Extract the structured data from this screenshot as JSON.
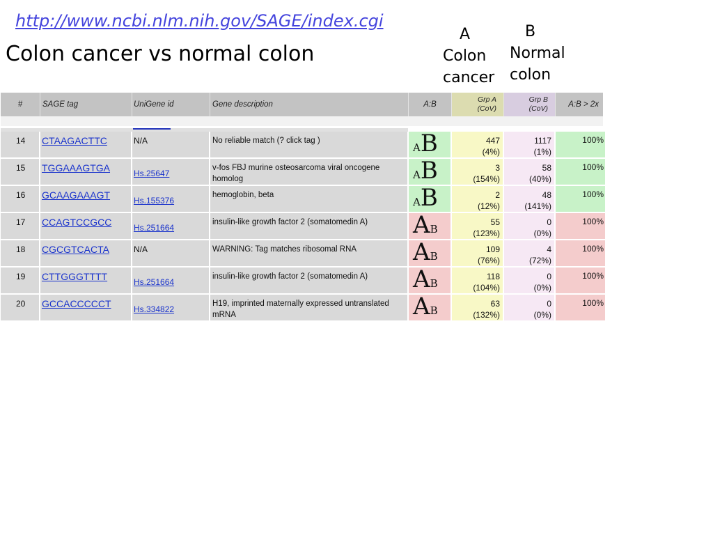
{
  "url": "http://www.ncbi.nlm.nih.gov/SAGE/index.cgi",
  "title": "Colon cancer vs normal colon",
  "groups": {
    "a": {
      "letter": "A",
      "line1": "Colon",
      "line2": "cancer"
    },
    "b": {
      "letter": "B",
      "line1": "Normal",
      "line2": "colon"
    }
  },
  "table": {
    "headers": {
      "num": "#",
      "tag": "SAGE tag",
      "unigene": "UniGene id",
      "desc": "Gene description",
      "ab": "A:B",
      "grpa_line1": "Grp A",
      "grpa_line2": "(CoV)",
      "grpb_line1": "Grp B",
      "grpb_line2": "(CoV)",
      "ratio": "A:B > 2x"
    },
    "rows": [
      {
        "num": "14",
        "tag": "CTAAGACTTC",
        "unigene": "N/A",
        "desc": "No reliable match (? click tag )",
        "a_letter": "A",
        "b_letter": "B",
        "grpa": "447",
        "grpa_cov": "(4%)",
        "grpb": "1117",
        "grpb_cov": "(1%)",
        "pct": "100%"
      },
      {
        "num": "15",
        "tag": "TGGAAAGTGA",
        "unigene": "Hs.25647",
        "desc": "v-fos FBJ murine osteosarcoma viral oncogene homolog",
        "a_letter": "A",
        "b_letter": "B",
        "grpa": "3",
        "grpa_cov": "(154%)",
        "grpb": "58",
        "grpb_cov": "(40%)",
        "pct": "100%"
      },
      {
        "num": "16",
        "tag": "GCAAGAAAGT",
        "unigene": "Hs.155376",
        "desc": "hemoglobin, beta",
        "a_letter": "A",
        "b_letter": "B",
        "grpa": "2",
        "grpa_cov": "(12%)",
        "grpb": "48",
        "grpb_cov": "(141%)",
        "pct": "100%"
      },
      {
        "num": "17",
        "tag": "CCAGTCCGCC",
        "unigene": "Hs.251664",
        "desc": "insulin-like growth factor 2 (somatomedin A)",
        "a_letter": "A",
        "b_letter": "B",
        "grpa": "55",
        "grpa_cov": "(123%)",
        "grpb": "0",
        "grpb_cov": "(0%)",
        "pct": "100%"
      },
      {
        "num": "18",
        "tag": "CGCGTCACTA",
        "unigene": "N/A",
        "desc": "WARNING: Tag matches ribosomal RNA",
        "a_letter": "A",
        "b_letter": "B",
        "grpa": "109",
        "grpa_cov": "(76%)",
        "grpb": "4",
        "grpb_cov": "(72%)",
        "pct": "100%"
      },
      {
        "num": "19",
        "tag": "CTTGGGTTTT",
        "unigene": "Hs.251664",
        "desc": "insulin-like growth factor 2 (somatomedin A)",
        "a_letter": "A",
        "b_letter": "B",
        "grpa": "118",
        "grpa_cov": "(104%)",
        "grpb": "0",
        "grpb_cov": "(0%)",
        "pct": "100%"
      },
      {
        "num": "20",
        "tag": "GCCACCCCCT",
        "unigene": "Hs.334822",
        "desc": "H19, imprinted maternally expressed untranslated mRNA",
        "a_letter": "A",
        "b_letter": "B",
        "grpa": "63",
        "grpa_cov": "(132%)",
        "grpb": "0",
        "grpb_cov": "(0%)",
        "pct": "100%"
      }
    ]
  },
  "colors": {
    "url": "#4444dd",
    "link": "#1a33cc",
    "header_bg": "#c3c3c3",
    "cell_bg": "#d9d9d9",
    "grpa_bg": "#f8f8c6",
    "grpb_bg": "#f6e8f4",
    "higher_in_b": "#c8f2c8",
    "higher_in_a": "#f4cccc"
  }
}
